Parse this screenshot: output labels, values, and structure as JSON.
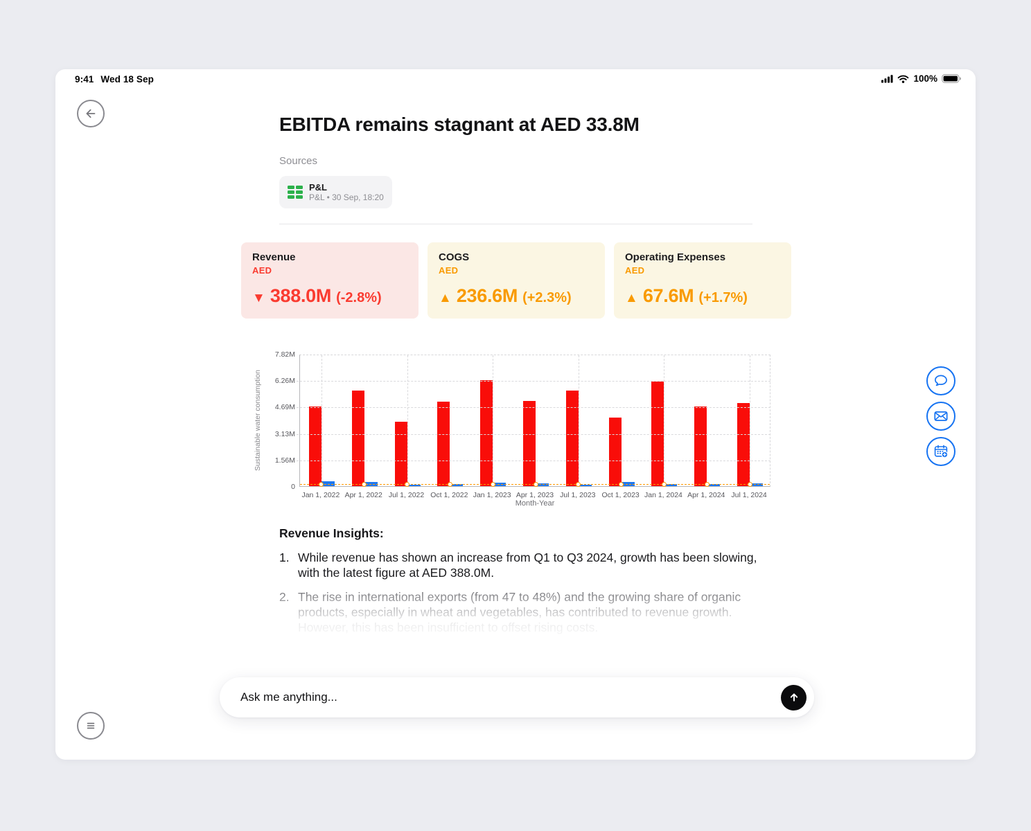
{
  "status_bar": {
    "time": "9:41",
    "date": "Wed 18 Sep",
    "battery_percent": "100%",
    "icons": [
      "cellular-signal-icon",
      "wifi-icon",
      "battery-icon"
    ]
  },
  "header": {
    "title": "EBITDA remains stagnant at AED 33.8M",
    "sources_label": "Sources",
    "source_chip": {
      "icon": "spreadsheet-icon",
      "icon_color": "#2CB14B",
      "title": "P&L",
      "subtitle": "P&L • 30 Sep, 18:20"
    }
  },
  "metric_cards": [
    {
      "label": "Revenue",
      "currency": "AED",
      "arrow": "▼",
      "direction": "down",
      "value": "388.0M",
      "change": "(-2.8%)",
      "accent": "#FA3B30",
      "background": "#FBE7E5"
    },
    {
      "label": "COGS",
      "currency": "AED",
      "arrow": "▲",
      "direction": "up",
      "value": "236.6M",
      "change": "(+2.3%)",
      "accent": "#F99A00",
      "background": "#FBF6E3"
    },
    {
      "label": "Operating Expenses",
      "currency": "AED",
      "arrow": "▲",
      "direction": "up",
      "value": "67.6M",
      "change": "(+1.7%)",
      "accent": "#F99A00",
      "background": "#FBF6E3"
    }
  ],
  "chart_data": {
    "type": "bar",
    "categories": [
      "Jan 1, 2022",
      "Apr 1, 2022",
      "Jul 1, 2022",
      "Oct 1, 2022",
      "Jan 1, 2023",
      "Apr 1, 2023",
      "Jul 1, 2023",
      "Oct 1, 2023",
      "Jan 1, 2024",
      "Apr 1, 2024",
      "Jul 1, 2024"
    ],
    "series": [
      {
        "name": "primary-red-bars",
        "type": "bar",
        "color": "#F90D09",
        "values_m": [
          4.72,
          5.65,
          3.8,
          5.0,
          6.26,
          5.05,
          5.65,
          4.05,
          6.18,
          4.72,
          4.9
        ]
      },
      {
        "name": "secondary-blue-bars",
        "type": "bar",
        "color": "#1E78F0",
        "values_m": [
          0.28,
          0.25,
          0.08,
          0.14,
          0.19,
          0.17,
          0.07,
          0.25,
          0.14,
          0.14,
          0.17
        ]
      },
      {
        "name": "orange-dashed-baseline",
        "type": "line",
        "color": "#FF9800",
        "values_m": [
          0.02,
          0.02,
          0.02,
          0.02,
          0.02,
          0.02,
          0.02,
          0.02,
          0.02,
          0.02,
          0.02
        ],
        "marker": "open-circle"
      }
    ],
    "xlabel": "Month-Year",
    "ylabel": "Sustainable water consumption",
    "ytick_labels": [
      "0",
      "1.56M",
      "3.13M",
      "4.69M",
      "6.26M",
      "7.82M"
    ],
    "ytick_values_m": [
      0,
      1.56,
      3.13,
      4.69,
      6.26,
      7.82
    ],
    "ylim_m": [
      0,
      7.82
    ],
    "grid": "dashed",
    "legend": "none",
    "vertical_gridline_indices": [
      0,
      2,
      4,
      6,
      8,
      10
    ]
  },
  "insights": {
    "heading": "Revenue Insights:",
    "items": [
      {
        "num": "1.",
        "text": "While revenue has shown an increase from Q1 to Q3 2024, growth has been slowing, with the latest figure at AED 388.0M."
      },
      {
        "num": "2.",
        "text": "The rise in international exports (from 47 to 48%) and the growing share of organic products, especially in wheat and vegetables, has contributed to revenue growth. However, this has been insufficient to offset rising costs."
      }
    ]
  },
  "action_rail": {
    "accent": "#1673F2",
    "buttons": [
      {
        "name": "chat-button",
        "icon": "chat-bubble-icon"
      },
      {
        "name": "email-button",
        "icon": "envelope-icon"
      },
      {
        "name": "calendar-button",
        "icon": "calendar-add-icon"
      }
    ]
  },
  "ask_bar": {
    "placeholder": "Ask me anything...",
    "send_icon": "arrow-up-icon"
  },
  "menu_button": {
    "icon": "hamburger-icon"
  }
}
